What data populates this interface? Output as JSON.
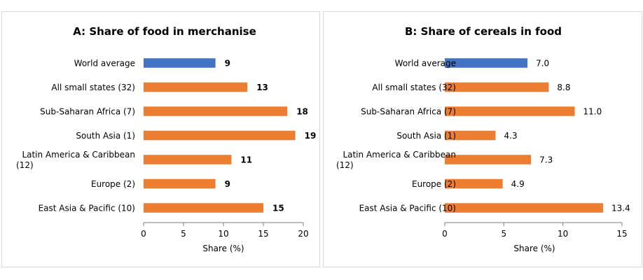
{
  "colors": {
    "highlight": "#4472C4",
    "bars": "#ED7D31",
    "axis": "#7f7f7f"
  },
  "chart_data": [
    {
      "type": "bar",
      "orientation": "horizontal",
      "title": "A: Share of food in merchanise",
      "xlabel": "Share (%)",
      "xlim": [
        0,
        20
      ],
      "xticks": [
        "0",
        "5",
        "10",
        "15",
        "20"
      ],
      "categories": [
        [
          "World average"
        ],
        [
          "All small states (32)"
        ],
        [
          "Sub-Saharan Africa (7)"
        ],
        [
          "South Asia  (1)"
        ],
        [
          "Latin America & Caribbean",
          "(12)"
        ],
        [
          "Europe (2)"
        ],
        [
          "East Asia & Pacific (10)"
        ]
      ],
      "values": [
        9,
        13,
        18,
        19,
        11,
        9,
        15
      ],
      "value_labels": [
        "9",
        "13",
        "18",
        "19",
        "11",
        "9",
        "15"
      ],
      "highlight_index": 0,
      "grid": false
    },
    {
      "type": "bar",
      "orientation": "horizontal",
      "title": "B: Share of cereals in food",
      "xlabel": "Share (%)",
      "xlim": [
        0,
        15
      ],
      "xticks": [
        "0",
        "5",
        "10",
        "15"
      ],
      "categories": [
        [
          "World average"
        ],
        [
          "All small states (32)"
        ],
        [
          "Sub-Saharan Africa (7)"
        ],
        [
          "South Asia  (1)"
        ],
        [
          "Latin America & Caribbean",
          "(12)"
        ],
        [
          "Europe (2)"
        ],
        [
          "East Asia & Pacific (10)"
        ]
      ],
      "values": [
        7.0,
        8.8,
        11.0,
        4.3,
        7.3,
        4.9,
        13.4
      ],
      "value_labels": [
        "7.0",
        "8.8",
        "11.0",
        "4.3",
        "7.3",
        "4.9",
        "13.4"
      ],
      "highlight_index": 0,
      "grid": false
    }
  ]
}
